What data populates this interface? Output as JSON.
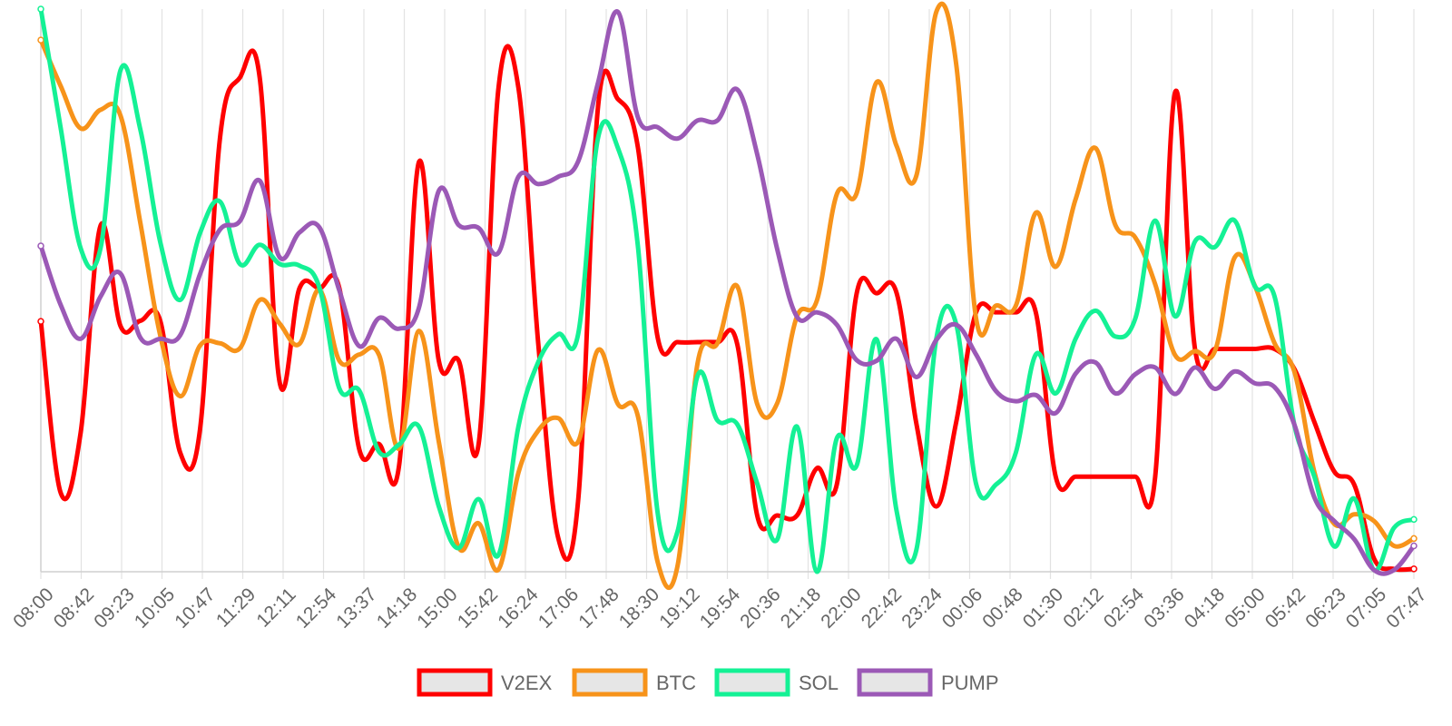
{
  "chart_data": {
    "type": "line",
    "title": "",
    "xlabel": "",
    "ylabel": "",
    "ylim": [
      0,
      100
    ],
    "grid": true,
    "legend_position": "bottom",
    "tick_labels": [
      "08:00",
      "08:42",
      "09:23",
      "10:05",
      "10:47",
      "11:29",
      "12:11",
      "12:54",
      "13:37",
      "14:18",
      "15:00",
      "15:42",
      "16:24",
      "17:06",
      "17:48",
      "18:30",
      "19:12",
      "19:54",
      "20:36",
      "21:18",
      "22:00",
      "22:42",
      "23:24",
      "00:06",
      "00:48",
      "01:30",
      "02:12",
      "02:54",
      "03:36",
      "04:18",
      "05:00",
      "05:42",
      "06:23",
      "07:05",
      "07:47"
    ],
    "series": [
      {
        "name": "V2EX",
        "color": "#ff0000",
        "values": [
          44.5,
          14.0,
          24.7,
          61.5,
          43.7,
          44.6,
          44.6,
          21.2,
          25.3,
          77.0,
          87.8,
          87.8,
          33.7,
          50.4,
          50.4,
          50.4,
          21.8,
          22.7,
          18.8,
          72.8,
          37.5,
          37.5,
          22.7,
          86.0,
          86.0,
          40.4,
          6.0,
          12.6,
          82.6,
          84.0,
          75.5,
          41.6,
          40.8,
          40.8,
          40.8,
          40.4,
          10.0,
          10.0,
          10.0,
          18.4,
          15.5,
          49.5,
          49.5,
          49.6,
          26.3,
          11.6,
          26.6,
          46.1,
          46.1,
          46.1,
          46.1,
          16.9,
          16.9,
          16.9,
          16.9,
          16.9,
          16.9,
          85.2,
          39.6,
          39.6,
          39.6,
          39.6,
          39.6,
          36.0,
          26.6,
          17.8,
          15.5,
          2.3,
          0.5,
          0.5
        ]
      },
      {
        "name": "BTC",
        "color": "#f7931a",
        "values": [
          94.5,
          86.3,
          78.8,
          82.1,
          81.1,
          62.0,
          42.0,
          31.2,
          40.2,
          40.6,
          39.7,
          48.3,
          44.1,
          40.5,
          50.1,
          37.5,
          38.6,
          38.5,
          21.9,
          42.8,
          23.1,
          4.3,
          8.6,
          0.4,
          17.6,
          25.1,
          27.3,
          23.1,
          39.4,
          29.8,
          27.7,
          1.7,
          1.1,
          37.0,
          40.6,
          50.7,
          29.8,
          29.9,
          45.4,
          48.2,
          67.1,
          67.3,
          87.0,
          75.7,
          70.4,
          99.5,
          90.2,
          45.0,
          47.3,
          47.3,
          63.8,
          54.2,
          66.2,
          75.3,
          61.6,
          59.4,
          51.1,
          38.5,
          39.2,
          39.2,
          55.9,
          50.9,
          40.6,
          35.5,
          17.7,
          8.5,
          10.2,
          9.0,
          4.6,
          5.9
        ]
      },
      {
        "name": "SOL",
        "color": "#14f195",
        "values": [
          100.0,
          78.8,
          57.5,
          57.5,
          89.1,
          78.6,
          58.6,
          48.3,
          60.2,
          65.8,
          54.7,
          58.1,
          54.7,
          54.4,
          50.5,
          32.6,
          32.2,
          21.3,
          22.6,
          25.8,
          11.6,
          4.2,
          12.9,
          3.0,
          25.8,
          37.3,
          42.2,
          42.2,
          77.1,
          75.3,
          58.0,
          10.4,
          7.2,
          34.8,
          26.9,
          26.2,
          15.7,
          5.7,
          25.8,
          0.0,
          23.7,
          18.9,
          41.3,
          10.9,
          3.9,
          41.4,
          44.0,
          15.6,
          15.5,
          21.2,
          38.6,
          31.7,
          41.4,
          46.4,
          41.8,
          45.0,
          62.4,
          45.4,
          58.7,
          57.7,
          62.4,
          50.8,
          48.9,
          26.0,
          16.9,
          4.5,
          13.0,
          0.3,
          7.8,
          9.3
        ]
      },
      {
        "name": "PUMP",
        "color": "#9b59b6",
        "values": [
          57.9,
          47.4,
          41.4,
          48.9,
          53.0,
          41.6,
          41.4,
          42.0,
          52.9,
          60.8,
          62.3,
          69.5,
          55.9,
          60.3,
          61.2,
          50.0,
          40.1,
          45.1,
          43.2,
          46.9,
          67.7,
          61.6,
          61.1,
          56.7,
          70.2,
          68.9,
          70.2,
          72.9,
          86.9,
          99.5,
          80.8,
          79.0,
          77.0,
          80.2,
          80.2,
          85.7,
          74.2,
          57.4,
          45.3,
          46.1,
          43.9,
          37.6,
          37.5,
          41.4,
          34.6,
          41.2,
          43.9,
          38.6,
          32.1,
          30.3,
          31.4,
          28.2,
          35.2,
          37.2,
          31.7,
          35.1,
          36.3,
          31.6,
          36.3,
          32.5,
          35.6,
          33.5,
          32.8,
          26.1,
          13.2,
          9.0,
          5.8,
          0.3,
          0.3,
          4.6
        ]
      }
    ]
  },
  "legend": {
    "items": [
      {
        "label": "V2EX",
        "color": "#ff0000"
      },
      {
        "label": "BTC",
        "color": "#f7931a"
      },
      {
        "label": "SOL",
        "color": "#14f195"
      },
      {
        "label": "PUMP",
        "color": "#9b59b6"
      }
    ]
  }
}
